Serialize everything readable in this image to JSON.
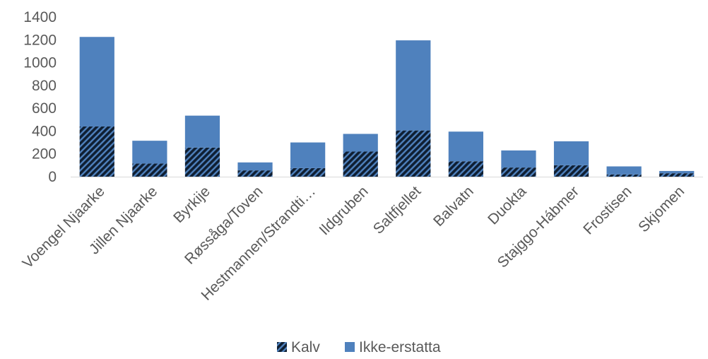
{
  "chart_data": {
    "type": "bar",
    "stacked": true,
    "title": "",
    "xlabel": "",
    "ylabel": "",
    "ylim": [
      0,
      1400
    ],
    "yticks": [
      0,
      200,
      400,
      600,
      800,
      1000,
      1200,
      1400
    ],
    "grid": false,
    "legend_position": "bottom",
    "categories": [
      "Voengel Njaarke",
      "Jillen Njaarke",
      "Byrkije",
      "Røssåga/Toven",
      "Hestmannen/Strandti…",
      "Ildgruben",
      "Saltfjellet",
      "Balvatn",
      "Duokta",
      "Stajggo-Hábmer",
      "Frostisen",
      "Skjomen"
    ],
    "series": [
      {
        "name": "Kalv",
        "values": [
          440,
          115,
          255,
          55,
          75,
          220,
          405,
          135,
          80,
          100,
          20,
          30
        ],
        "color": "#1f3b5c",
        "pattern": "diagonal-hatch"
      },
      {
        "name": "Ikke-erstatta",
        "values": [
          785,
          200,
          280,
          70,
          225,
          155,
          790,
          260,
          150,
          210,
          70,
          20
        ],
        "color": "#4f81bd"
      }
    ]
  }
}
